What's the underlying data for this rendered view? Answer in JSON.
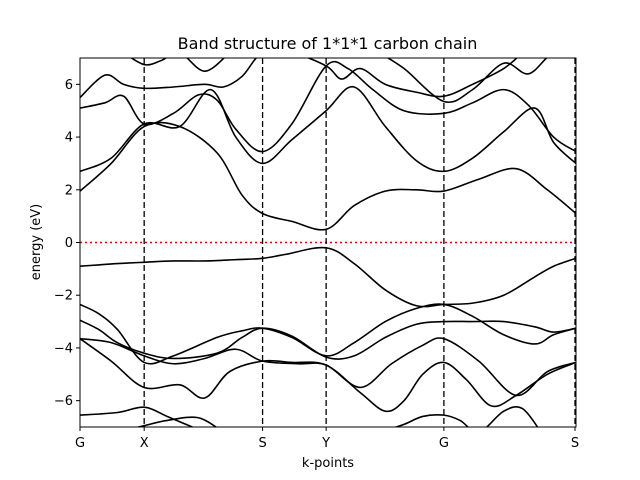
{
  "chart_data": {
    "type": "line",
    "title": "Band structure of 1*1*1 carbon chain",
    "xlabel": "k-points",
    "ylabel": "energy (eV)",
    "xlim": [
      0,
      7.96
    ],
    "ylim": [
      -7,
      7
    ],
    "yticks": [
      -6,
      -4,
      -2,
      0,
      2,
      4,
      6
    ],
    "kpoints": [
      {
        "label": "G",
        "x": 0
      },
      {
        "label": "X",
        "x": 1.03
      },
      {
        "label": "S",
        "x": 2.93
      },
      {
        "label": "Y",
        "x": 3.95
      },
      {
        "label": "G",
        "x": 5.84
      },
      {
        "label": "S",
        "x": 7.96
      }
    ],
    "fermi_level": 0,
    "fermi_color": "#e00000",
    "band_color": "#000000",
    "grid": false,
    "legend": "none",
    "series": [
      {
        "x": [
          0,
          0.3,
          0.6,
          1.03,
          1.5,
          2.2,
          2.6,
          2.93,
          3.4,
          3.95,
          4.4,
          4.9,
          5.4,
          5.84,
          6.3,
          6.8,
          7.3,
          7.6,
          7.96
        ],
        "y": [
          -2.35,
          -2.7,
          -3.3,
          -4.55,
          -4.3,
          -3.6,
          -3.35,
          -3.25,
          -3.6,
          -4.3,
          -3.8,
          -3.0,
          -2.5,
          -2.35,
          -2.8,
          -3.5,
          -3.85,
          -3.5,
          -3.25
        ]
      },
      {
        "x": [
          0,
          0.3,
          0.6,
          1.03,
          1.5,
          2.2,
          2.6,
          2.93,
          3.4,
          3.95,
          4.4,
          4.9,
          5.4,
          5.84,
          6.3,
          6.8,
          7.3,
          7.6,
          7.96
        ],
        "y": [
          -2.95,
          -3.3,
          -3.8,
          -4.2,
          -4.4,
          -4.2,
          -3.6,
          -3.25,
          -3.55,
          -4.35,
          -4.3,
          -3.6,
          -3.1,
          -3.0,
          -3.0,
          -3.0,
          -3.2,
          -3.4,
          -3.25
        ]
      },
      {
        "x": [
          0,
          0.5,
          1.03,
          1.5,
          2.0,
          2.5,
          2.93,
          3.5,
          3.95,
          4.5,
          5.0,
          5.5,
          5.84,
          6.4,
          7.0,
          7.5,
          7.96
        ],
        "y": [
          -3.65,
          -3.8,
          -4.3,
          -4.6,
          -4.4,
          -4.05,
          -4.5,
          -4.6,
          -4.65,
          -5.5,
          -4.6,
          -3.9,
          -3.65,
          -4.5,
          -5.8,
          -4.9,
          -4.55
        ]
      },
      {
        "x": [
          0,
          0.5,
          1.03,
          1.6,
          2.0,
          2.4,
          2.93,
          3.4,
          3.95,
          4.5,
          4.9,
          5.2,
          5.5,
          5.84,
          6.2,
          6.6,
          7.0,
          7.5,
          7.96
        ],
        "y": [
          -3.65,
          -4.5,
          -5.5,
          -5.4,
          -5.9,
          -4.9,
          -4.5,
          -4.55,
          -4.65,
          -5.7,
          -6.4,
          -6.0,
          -5.0,
          -4.55,
          -5.2,
          -6.2,
          -5.8,
          -5.0,
          -4.55
        ]
      },
      {
        "x": [
          0,
          0.6,
          1.03,
          1.4,
          1.8,
          2.0
        ],
        "y": [
          -6.55,
          -6.45,
          -6.25,
          -6.6,
          -7.0,
          -7.2
        ]
      },
      {
        "x": [
          0.6,
          1.03,
          1.4,
          1.9,
          2.3
        ],
        "y": [
          -7.2,
          -6.95,
          -6.75,
          -6.65,
          -7.2
        ]
      },
      {
        "x": [
          4.8,
          5.2,
          5.5,
          5.84,
          6.1,
          6.4,
          6.8,
          7.1,
          7.4
        ],
        "y": [
          -7.2,
          -6.9,
          -6.6,
          -6.55,
          -6.75,
          -7.2,
          -6.4,
          -6.3,
          -7.2
        ]
      },
      {
        "x": [
          0,
          0.3,
          0.6,
          1.03,
          1.5,
          2.0,
          2.5,
          2.93,
          3.3,
          3.95,
          4.4,
          4.9,
          5.4,
          5.84,
          6.3,
          6.8,
          7.3,
          7.6,
          7.96
        ],
        "y": [
          -0.9,
          -0.85,
          -0.8,
          -0.75,
          -0.7,
          -0.7,
          -0.65,
          -0.6,
          -0.45,
          -0.2,
          -0.8,
          -1.8,
          -2.4,
          -2.35,
          -2.3,
          -2.0,
          -1.3,
          -0.9,
          -0.6
        ]
      },
      {
        "x": [
          0,
          0.5,
          1.03,
          1.6,
          2.2,
          2.6,
          2.93,
          3.4,
          3.95,
          4.4,
          4.9,
          5.4,
          5.84,
          6.4,
          7.0,
          7.5,
          7.96
        ],
        "y": [
          1.95,
          3.0,
          4.4,
          4.4,
          3.4,
          1.8,
          1.1,
          0.8,
          0.5,
          1.4,
          1.95,
          2.0,
          1.95,
          2.4,
          2.8,
          2.0,
          1.1
        ]
      },
      {
        "x": [
          0,
          0.5,
          1.03,
          1.6,
          2.1,
          2.5,
          2.93,
          3.4,
          3.95,
          4.4,
          4.9,
          5.4,
          5.84,
          6.3,
          6.8,
          7.3,
          7.6,
          7.96
        ],
        "y": [
          2.7,
          3.2,
          4.5,
          4.4,
          5.8,
          4.0,
          3.0,
          3.9,
          5.0,
          5.9,
          4.4,
          3.1,
          2.7,
          3.2,
          4.2,
          5.1,
          3.8,
          3.0
        ]
      },
      {
        "x": [
          0,
          0.4,
          0.7,
          1.03,
          1.5,
          1.9,
          2.2,
          2.5,
          2.93,
          3.4,
          3.95,
          4.3,
          4.7,
          5.2,
          5.84,
          6.3,
          6.8,
          7.2,
          7.6,
          7.96
        ],
        "y": [
          5.1,
          5.3,
          5.55,
          4.5,
          4.9,
          5.6,
          5.4,
          4.3,
          3.45,
          4.5,
          6.7,
          6.6,
          5.8,
          5.0,
          4.9,
          5.3,
          5.8,
          5.2,
          4.0,
          3.45
        ]
      },
      {
        "x": [
          0,
          0.4,
          0.7,
          1.03,
          1.5,
          2.0,
          2.3,
          2.6,
          2.93,
          3.4,
          3.95,
          4.2,
          4.5,
          4.9,
          5.4,
          5.84,
          6.3,
          6.8,
          7.1
        ],
        "y": [
          5.5,
          6.35,
          6.0,
          5.85,
          5.9,
          6.0,
          5.9,
          6.3,
          7.2,
          7.2,
          6.7,
          6.2,
          6.6,
          6.0,
          5.7,
          5.55,
          6.0,
          6.6,
          7.2
        ]
      },
      {
        "x": [
          0.7,
          1.03,
          1.3,
          1.6,
          2.0,
          2.4
        ],
        "y": [
          7.2,
          6.75,
          6.9,
          7.2,
          6.5,
          7.2
        ]
      },
      {
        "x": [
          4.8,
          5.2,
          5.84,
          6.3,
          6.8,
          7.2,
          7.6,
          7.96
        ],
        "y": [
          7.2,
          6.6,
          5.35,
          5.8,
          6.8,
          6.4,
          7.2,
          7.0
        ]
      }
    ]
  }
}
